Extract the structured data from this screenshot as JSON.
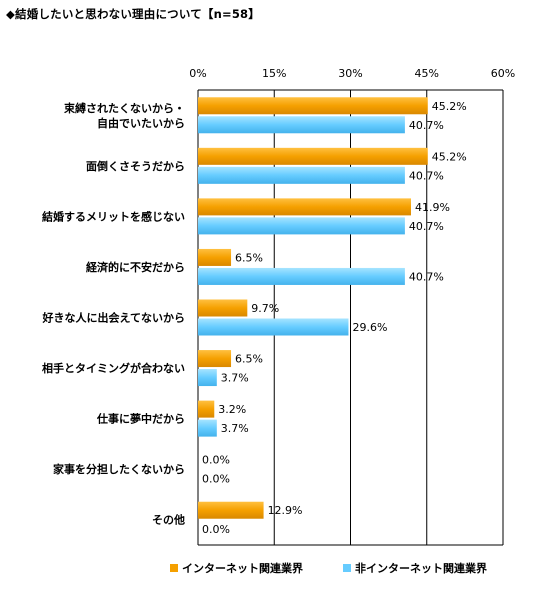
{
  "title": "◆結婚したいと思わない理由について【n=58】",
  "colors": {
    "internet": "#F5A000",
    "non_internet": "#66CCFF",
    "grid": "#000000"
  },
  "chart_data": {
    "type": "bar",
    "orientation": "horizontal",
    "categories": [
      "束縛されたくないから・\n自由でいたいから",
      "面倒くさそうだから",
      "結婚するメリットを感じない",
      "経済的に不安だから",
      "好きな人に出会えてないから",
      "相手とタイミングが合わない",
      "仕事に夢中だから",
      "家事を分担したくないから",
      "その他"
    ],
    "series": [
      {
        "name": "インターネット関連業界",
        "values": [
          45.2,
          45.2,
          41.9,
          6.5,
          9.7,
          6.5,
          3.2,
          0.0,
          12.9
        ]
      },
      {
        "name": "非インターネット関連業界",
        "values": [
          40.7,
          40.7,
          40.7,
          40.7,
          29.6,
          3.7,
          3.7,
          0.0,
          0.0
        ]
      }
    ],
    "value_labels": [
      [
        "45.2%",
        "45.2%",
        "41.9%",
        "6.5%",
        "9.7%",
        "6.5%",
        "3.2%",
        "0.0%",
        "12.9%"
      ],
      [
        "40.7%",
        "40.7%",
        "40.7%",
        "40.7%",
        "29.6%",
        "3.7%",
        "3.7%",
        "0.0%",
        "0.0%"
      ]
    ],
    "xlim": [
      0,
      60
    ],
    "xticks": [
      0,
      15,
      30,
      45,
      60
    ],
    "xtick_labels": [
      "0%",
      "15%",
      "30%",
      "45%",
      "60%"
    ],
    "grid": true,
    "legend_position": "bottom"
  }
}
